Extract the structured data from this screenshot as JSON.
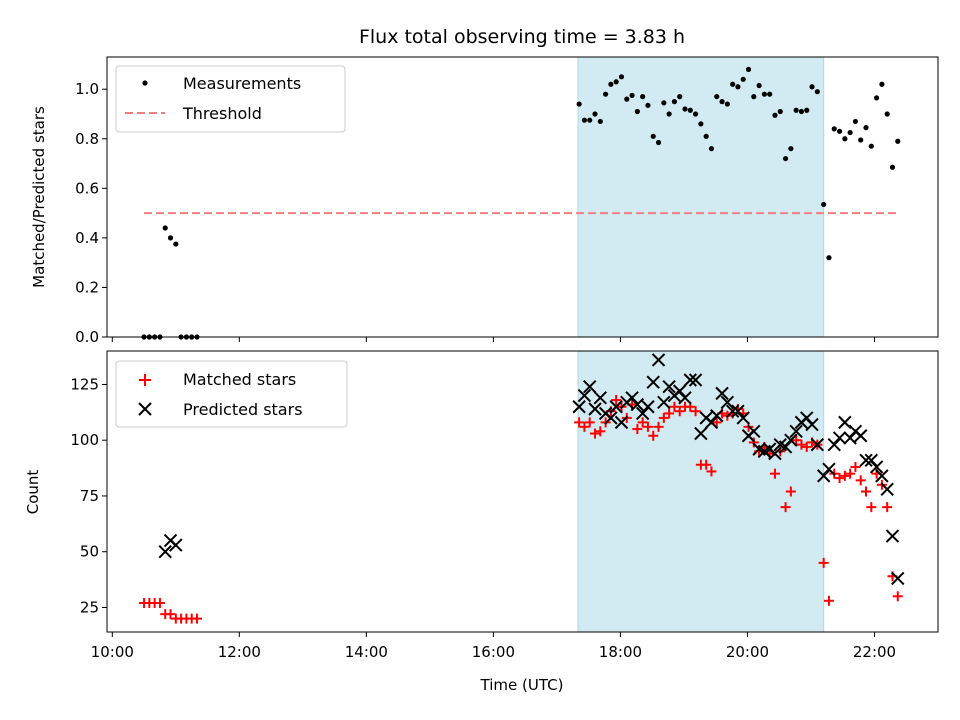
{
  "chart_data": {
    "type": "scatter",
    "title": "Flux total observing time = 3.83 h",
    "xlabel": "Time (UTC)",
    "x_ticks": [
      "10:00",
      "12:00",
      "14:00",
      "16:00",
      "18:00",
      "20:00",
      "22:00"
    ],
    "xlim": [
      "09:55",
      "23:00"
    ],
    "shaded_region": {
      "x0": "17:20",
      "x1": "21:12",
      "color": "#add8e6"
    },
    "top": {
      "ylabel": "Matched/Predicted stars",
      "ylim": [
        0,
        1.13
      ],
      "y_ticks": [
        "0.0",
        "0.2",
        "0.4",
        "0.6",
        "0.8",
        "1.0"
      ],
      "legend": {
        "position": "upper-left",
        "entries": [
          "Measurements",
          "Threshold"
        ]
      },
      "threshold": {
        "name": "Threshold",
        "value": 0.5,
        "x0": "10:30",
        "x1": "22:24",
        "color": "#f08080"
      },
      "measurements": {
        "name": "Measurements",
        "color": "#000000",
        "points": [
          [
            "10:30",
            0.0
          ],
          [
            "10:35",
            0.0
          ],
          [
            "10:40",
            0.0
          ],
          [
            "10:45",
            0.0
          ],
          [
            "10:50",
            0.44
          ],
          [
            "10:55",
            0.4
          ],
          [
            "11:00",
            0.375
          ],
          [
            "11:05",
            0.0
          ],
          [
            "11:10",
            0.0
          ],
          [
            "11:15",
            0.0
          ],
          [
            "11:20",
            0.0
          ],
          [
            "17:21",
            0.94
          ],
          [
            "17:26",
            0.875
          ],
          [
            "17:31",
            0.875
          ],
          [
            "17:36",
            0.9
          ],
          [
            "17:41",
            0.87
          ],
          [
            "17:46",
            0.98
          ],
          [
            "17:51",
            1.02
          ],
          [
            "17:56",
            1.03
          ],
          [
            "18:01",
            1.05
          ],
          [
            "18:06",
            0.96
          ],
          [
            "18:11",
            0.975
          ],
          [
            "18:16",
            0.91
          ],
          [
            "18:21",
            0.97
          ],
          [
            "18:26",
            0.935
          ],
          [
            "18:31",
            0.81
          ],
          [
            "18:36",
            0.785
          ],
          [
            "18:41",
            0.945
          ],
          [
            "18:46",
            0.9
          ],
          [
            "18:51",
            0.95
          ],
          [
            "18:56",
            0.97
          ],
          [
            "19:01",
            0.92
          ],
          [
            "19:06",
            0.915
          ],
          [
            "19:11",
            0.9
          ],
          [
            "19:16",
            0.86
          ],
          [
            "19:21",
            0.81
          ],
          [
            "19:26",
            0.76
          ],
          [
            "19:31",
            0.97
          ],
          [
            "19:36",
            0.95
          ],
          [
            "19:41",
            0.94
          ],
          [
            "19:46",
            1.02
          ],
          [
            "19:51",
            1.01
          ],
          [
            "19:56",
            1.04
          ],
          [
            "20:01",
            1.08
          ],
          [
            "20:06",
            0.97
          ],
          [
            "20:11",
            1.015
          ],
          [
            "20:16",
            0.98
          ],
          [
            "20:21",
            0.98
          ],
          [
            "20:26",
            0.895
          ],
          [
            "20:31",
            0.91
          ],
          [
            "20:36",
            0.72
          ],
          [
            "20:41",
            0.76
          ],
          [
            "20:46",
            0.915
          ],
          [
            "20:51",
            0.91
          ],
          [
            "20:56",
            0.915
          ],
          [
            "21:01",
            1.01
          ],
          [
            "21:06",
            0.99
          ],
          [
            "21:12",
            0.535
          ],
          [
            "21:17",
            0.32
          ],
          [
            "21:22",
            0.84
          ],
          [
            "21:27",
            0.83
          ],
          [
            "21:32",
            0.8
          ],
          [
            "21:37",
            0.825
          ],
          [
            "21:42",
            0.87
          ],
          [
            "21:47",
            0.795
          ],
          [
            "21:52",
            0.845
          ],
          [
            "21:57",
            0.77
          ],
          [
            "22:02",
            0.965
          ],
          [
            "22:07",
            1.02
          ],
          [
            "22:12",
            0.9
          ],
          [
            "22:17",
            0.685
          ],
          [
            "22:22",
            0.79
          ]
        ]
      }
    },
    "bottom": {
      "ylabel": "Count",
      "ylim": [
        14,
        140
      ],
      "y_ticks": [
        "25",
        "50",
        "75",
        "100",
        "125"
      ],
      "legend": {
        "position": "upper-left",
        "entries": [
          "Matched stars",
          "Predicted stars"
        ]
      },
      "series": [
        {
          "name": "Matched stars",
          "marker": "plus",
          "color": "#ff0000",
          "points": [
            [
              "10:30",
              27
            ],
            [
              "10:35",
              27
            ],
            [
              "10:40",
              27
            ],
            [
              "10:45",
              27
            ],
            [
              "10:50",
              22
            ],
            [
              "10:55",
              22
            ],
            [
              "11:00",
              20
            ],
            [
              "11:05",
              20
            ],
            [
              "11:10",
              20
            ],
            [
              "11:15",
              20
            ],
            [
              "11:20",
              20
            ],
            [
              "17:21",
              108
            ],
            [
              "17:26",
              106
            ],
            [
              "17:31",
              108
            ],
            [
              "17:36",
              103
            ],
            [
              "17:41",
              104
            ],
            [
              "17:46",
              108
            ],
            [
              "17:51",
              113
            ],
            [
              "17:56",
              118
            ],
            [
              "18:01",
              115
            ],
            [
              "18:06",
              110
            ],
            [
              "18:11",
              116
            ],
            [
              "18:16",
              105
            ],
            [
              "18:21",
              108
            ],
            [
              "18:26",
              106
            ],
            [
              "18:31",
              102
            ],
            [
              "18:36",
              106
            ],
            [
              "18:41",
              110
            ],
            [
              "18:46",
              112
            ],
            [
              "18:51",
              115
            ],
            [
              "18:56",
              113
            ],
            [
              "19:01",
              115
            ],
            [
              "19:06",
              115
            ],
            [
              "19:11",
              113
            ],
            [
              "19:16",
              89
            ],
            [
              "19:21",
              89
            ],
            [
              "19:26",
              86
            ],
            [
              "19:31",
              108
            ],
            [
              "19:36",
              112
            ],
            [
              "19:41",
              111
            ],
            [
              "19:46",
              112
            ],
            [
              "19:51",
              114
            ],
            [
              "19:56",
              112
            ],
            [
              "20:01",
              106
            ],
            [
              "20:06",
              99
            ],
            [
              "20:11",
              95
            ],
            [
              "20:16",
              97
            ],
            [
              "20:21",
              94
            ],
            [
              "20:26",
              85
            ],
            [
              "20:31",
              95
            ],
            [
              "20:36",
              70
            ],
            [
              "20:41",
              77
            ],
            [
              "20:46",
              100
            ],
            [
              "20:51",
              98
            ],
            [
              "20:56",
              97
            ],
            [
              "21:01",
              99
            ],
            [
              "21:06",
              98
            ],
            [
              "21:12",
              45
            ],
            [
              "21:17",
              28
            ],
            [
              "21:22",
              85
            ],
            [
              "21:27",
              83
            ],
            [
              "21:32",
              84
            ],
            [
              "21:37",
              85
            ],
            [
              "21:42",
              88
            ],
            [
              "21:47",
              82
            ],
            [
              "21:52",
              77
            ],
            [
              "21:57",
              70
            ],
            [
              "22:02",
              85
            ],
            [
              "22:07",
              80
            ],
            [
              "22:12",
              70
            ],
            [
              "22:17",
              39
            ],
            [
              "22:22",
              30
            ]
          ]
        },
        {
          "name": "Predicted stars",
          "marker": "cross",
          "color": "#000000",
          "points": [
            [
              "10:50",
              50
            ],
            [
              "10:55",
              55
            ],
            [
              "11:00",
              53
            ],
            [
              "17:21",
              115
            ],
            [
              "17:26",
              120
            ],
            [
              "17:31",
              124
            ],
            [
              "17:36",
              114
            ],
            [
              "17:41",
              119
            ],
            [
              "17:46",
              112
            ],
            [
              "17:51",
              110
            ],
            [
              "17:56",
              115
            ],
            [
              "18:01",
              108
            ],
            [
              "18:06",
              117
            ],
            [
              "18:11",
              119
            ],
            [
              "18:16",
              116
            ],
            [
              "18:21",
              112
            ],
            [
              "18:26",
              115
            ],
            [
              "18:31",
              126
            ],
            [
              "18:36",
              136
            ],
            [
              "18:41",
              117
            ],
            [
              "18:46",
              124
            ],
            [
              "18:51",
              120
            ],
            [
              "18:56",
              122
            ],
            [
              "19:01",
              119
            ],
            [
              "19:06",
              127
            ],
            [
              "19:11",
              127
            ],
            [
              "19:16",
              103
            ],
            [
              "19:21",
              110
            ],
            [
              "19:26",
              108
            ],
            [
              "19:31",
              111
            ],
            [
              "19:36",
              121
            ],
            [
              "19:41",
              117
            ],
            [
              "19:46",
              113
            ],
            [
              "19:51",
              113
            ],
            [
              "19:56",
              110
            ],
            [
              "20:01",
              102
            ],
            [
              "20:06",
              104
            ],
            [
              "20:11",
              96
            ],
            [
              "20:16",
              95
            ],
            [
              "20:21",
              96
            ],
            [
              "20:26",
              94
            ],
            [
              "20:31",
              98
            ],
            [
              "20:36",
              97
            ],
            [
              "20:41",
              100
            ],
            [
              "20:46",
              104
            ],
            [
              "20:51",
              108
            ],
            [
              "20:56",
              110
            ],
            [
              "21:01",
              107
            ],
            [
              "21:06",
              98
            ],
            [
              "21:12",
              84
            ],
            [
              "21:17",
              87
            ],
            [
              "21:22",
              98
            ],
            [
              "21:27",
              101
            ],
            [
              "21:32",
              108
            ],
            [
              "21:37",
              101
            ],
            [
              "21:42",
              104
            ],
            [
              "21:47",
              102
            ],
            [
              "21:52",
              91
            ],
            [
              "21:57",
              91
            ],
            [
              "22:02",
              88
            ],
            [
              "22:07",
              84
            ],
            [
              "22:12",
              78
            ],
            [
              "22:17",
              57
            ],
            [
              "22:22",
              38
            ]
          ]
        }
      ]
    }
  }
}
